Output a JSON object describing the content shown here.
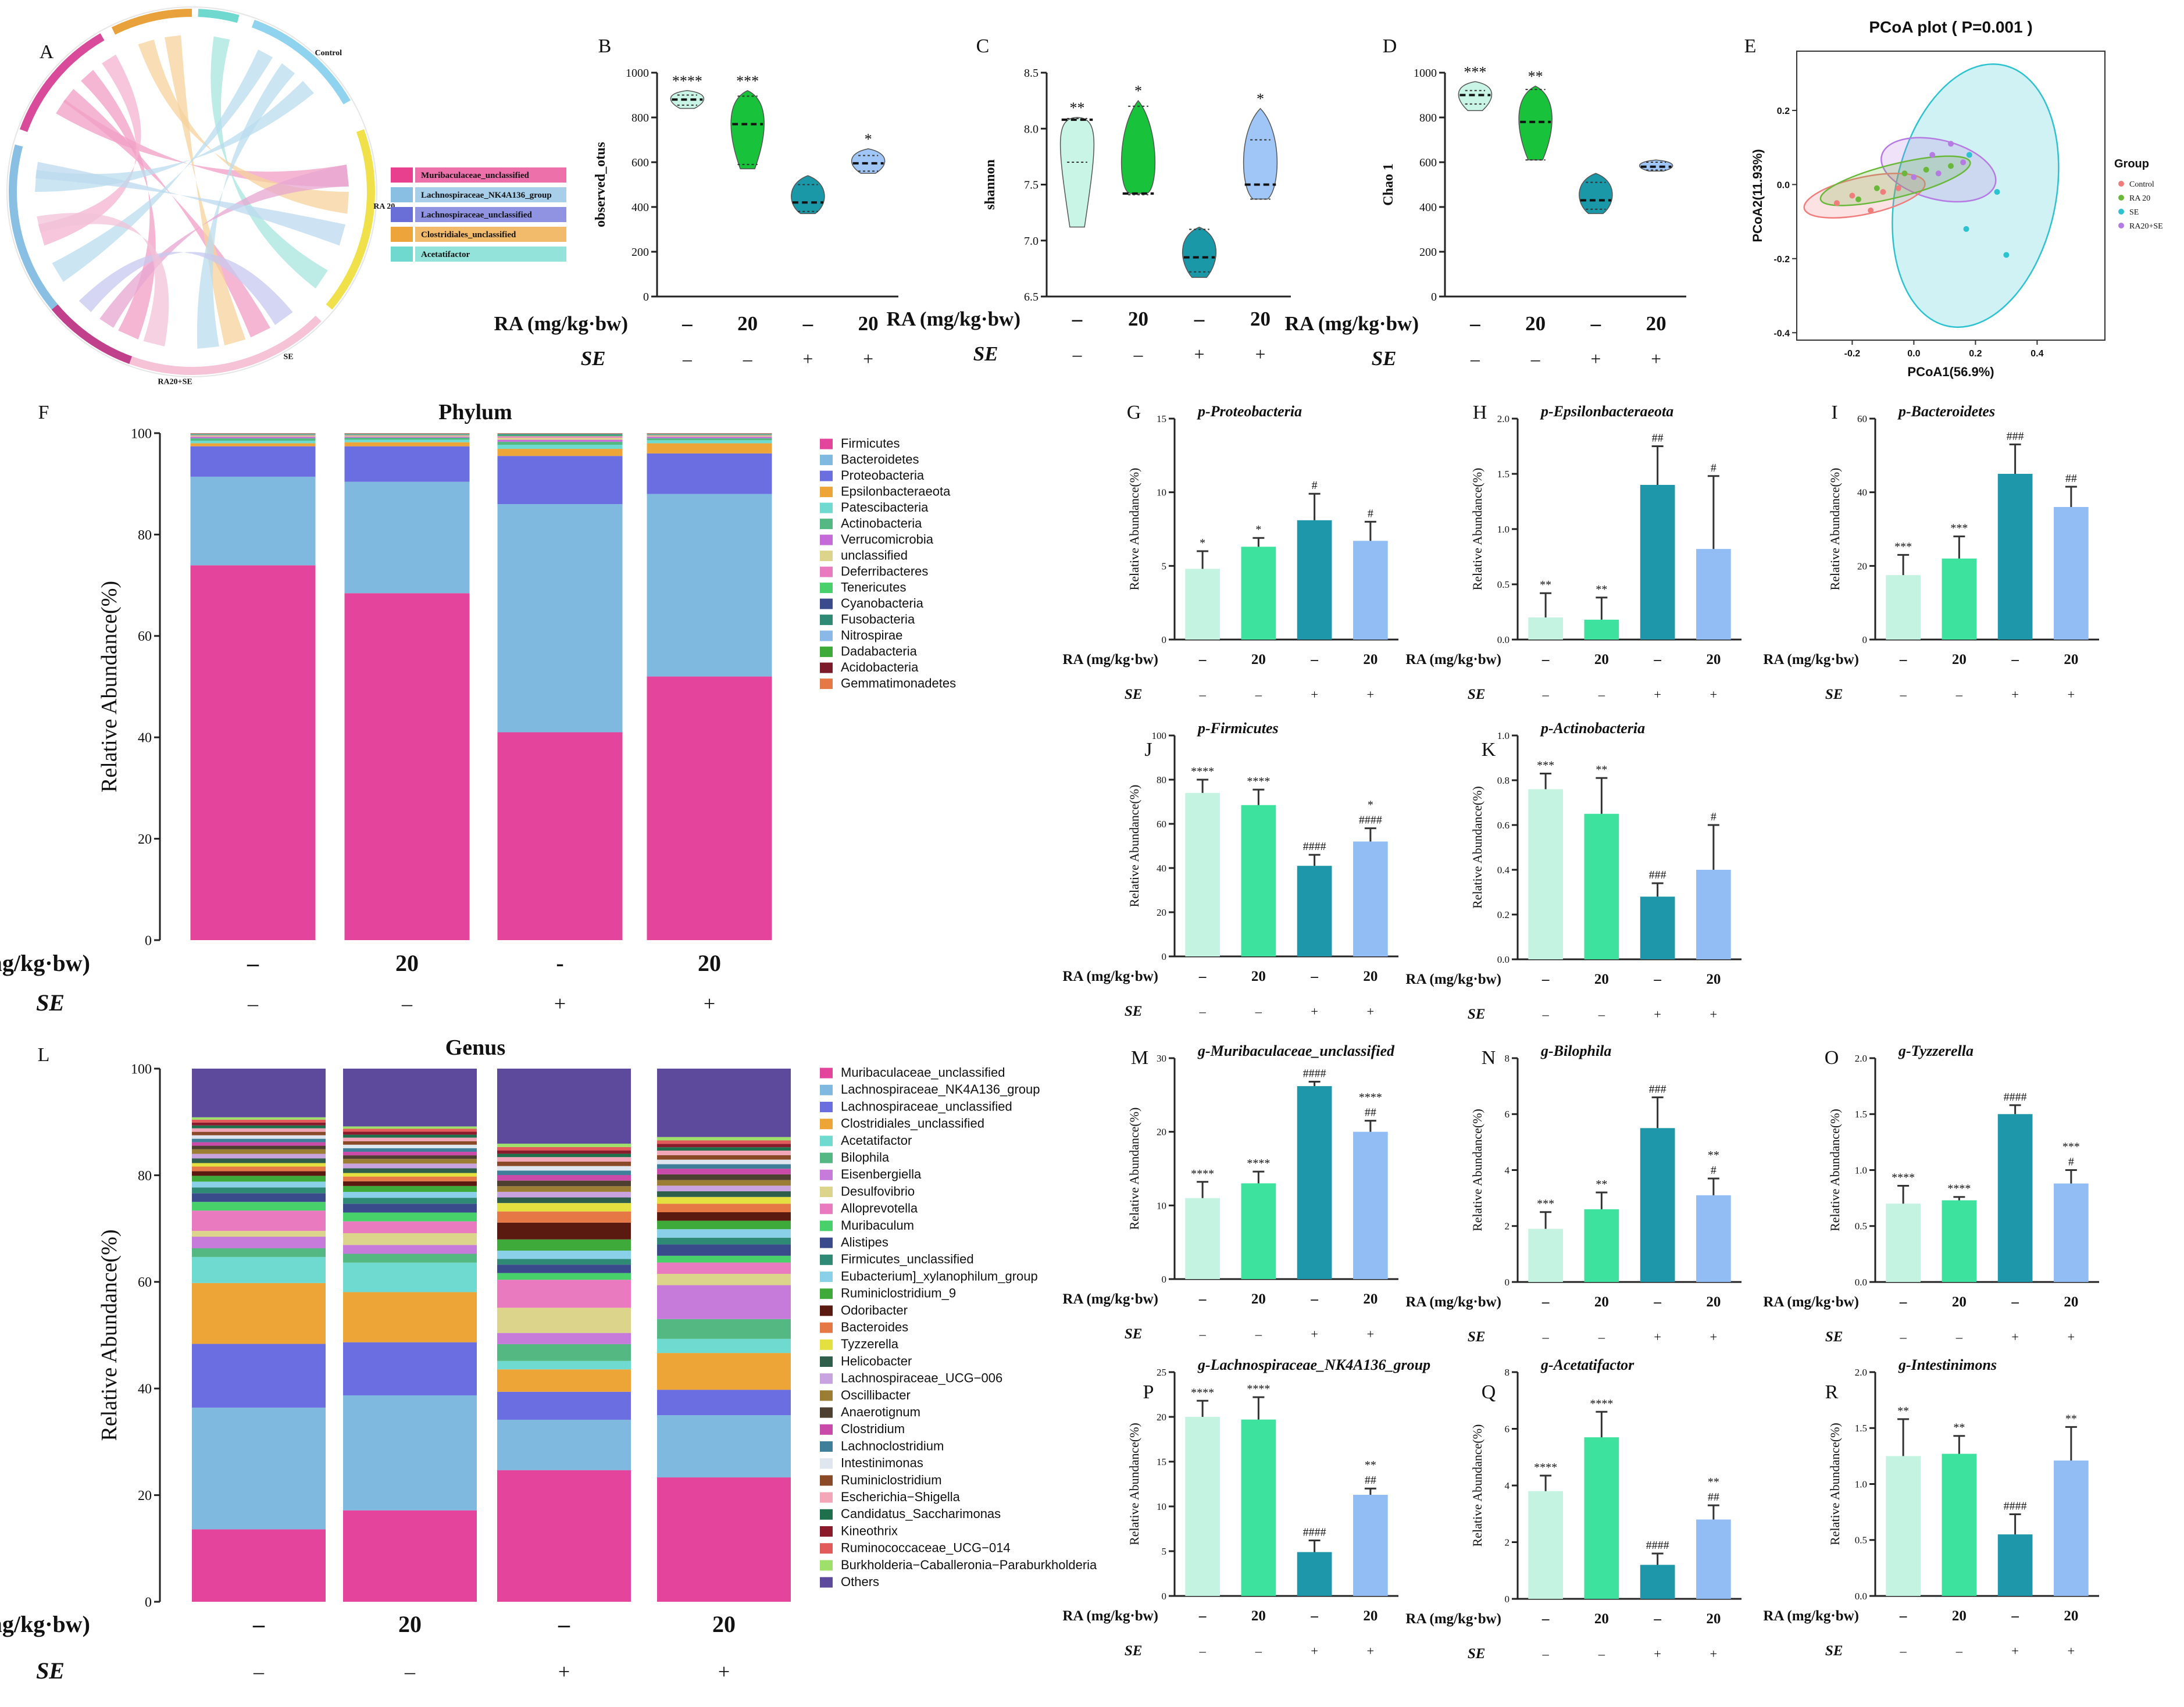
{
  "colors": {
    "c_control": "#c5f3e1",
    "c_ra": "#3ce29d",
    "c_se": "#1d97a9",
    "c_rase": "#92bdf4",
    "v_control": "#c8f5e6",
    "v_ra": "#18c23b",
    "v_se": "#1a98a8",
    "v_rase": "#9fc6f7",
    "axis": "#222222"
  },
  "group_axis": {
    "ra_label": "RA (mg/kg·bw)",
    "se_label": "SE",
    "ra_values": [
      "–",
      "20",
      "–",
      "20"
    ],
    "ra_values_phylum": [
      "–",
      "20",
      "-",
      "20"
    ],
    "se_values": [
      "–",
      "–",
      "+",
      "+"
    ]
  },
  "panel_letters": {
    "A": "A",
    "B": "B",
    "C": "C",
    "D": "D",
    "E": "E",
    "F": "F",
    "G": "G",
    "H": "H",
    "I": "I",
    "J": "J",
    "K": "K",
    "L": "L",
    "M": "M",
    "N": "N",
    "O": "O",
    "P": "P",
    "Q": "Q",
    "R": "R"
  },
  "chord_legend": [
    {
      "label": "Muribaculaceae_unclassified",
      "color": "#e8408f"
    },
    {
      "label": "Lachnospiraceae_NK4A136_group",
      "color": "#89bfe2"
    },
    {
      "label": "Lachnospiraceae_unclassified",
      "color": "#6a6fd8"
    },
    {
      "label": "Clostridiales_unclassified",
      "color": "#eda43a"
    },
    {
      "label": "Acetatifactor",
      "color": "#6fd9cf"
    }
  ],
  "chord_groups": [
    {
      "label": "Control",
      "color": "#8fd3ee"
    },
    {
      "label": "RA 20",
      "color": "#f0e14a"
    },
    {
      "label": "SE",
      "color": "#f5b0c8"
    },
    {
      "label": "RA20+SE",
      "color": "#f3c6da"
    }
  ],
  "chart_data": [
    {
      "id": "B",
      "type": "violin",
      "ylabel": "observed_otus",
      "ylim": [
        0,
        1000
      ],
      "ticks": [
        0,
        200,
        400,
        600,
        800,
        1000
      ],
      "groups": [
        {
          "lo": 830,
          "hi": 920,
          "median": 880,
          "q1": 855,
          "q3": 900
        },
        {
          "lo": 560,
          "hi": 920,
          "median": 770,
          "q1": 590,
          "q3": 895
        },
        {
          "lo": 360,
          "hi": 540,
          "median": 420,
          "q1": 380,
          "q3": 500
        },
        {
          "lo": 540,
          "hi": 660,
          "median": 595,
          "q1": 560,
          "q3": 630
        }
      ],
      "sig": [
        "****",
        "***",
        "",
        "*"
      ]
    },
    {
      "id": "C",
      "type": "violin",
      "ylabel": "shannon",
      "ylim": [
        6.5,
        8.5
      ],
      "ticks": [
        6.5,
        7.0,
        7.5,
        8.0,
        8.5
      ],
      "tick_labels": [
        "6.5",
        "7.0",
        "7.5",
        "8.0",
        "8.5"
      ],
      "groups": [
        {
          "lo": 7.1,
          "hi": 8.1,
          "median": 8.08,
          "q1": 7.7,
          "q3": 8.09
        },
        {
          "lo": 7.4,
          "hi": 8.25,
          "median": 7.42,
          "q1": 7.41,
          "q3": 8.2
        },
        {
          "lo": 6.65,
          "hi": 7.12,
          "median": 6.85,
          "q1": 6.72,
          "q3": 7.1
        },
        {
          "lo": 7.35,
          "hi": 8.18,
          "median": 7.5,
          "q1": 7.37,
          "q3": 7.9
        }
      ],
      "sig": [
        "**",
        "*",
        "",
        "*"
      ]
    },
    {
      "id": "D",
      "type": "violin",
      "ylabel": "Chao 1",
      "ylim": [
        0,
        1000
      ],
      "ticks": [
        0,
        200,
        400,
        600,
        800,
        1000
      ],
      "groups": [
        {
          "lo": 820,
          "hi": 960,
          "median": 900,
          "q1": 860,
          "q3": 920
        },
        {
          "lo": 600,
          "hi": 940,
          "median": 780,
          "q1": 610,
          "q3": 925
        },
        {
          "lo": 360,
          "hi": 550,
          "median": 430,
          "q1": 390,
          "q3": 510
        },
        {
          "lo": 550,
          "hi": 610,
          "median": 580,
          "q1": 565,
          "q3": 600
        }
      ],
      "sig": [
        "***",
        "**",
        "",
        ""
      ]
    },
    {
      "id": "E",
      "type": "scatter",
      "title": "PCoA plot ( P=0.001 )",
      "xlabel": "PCoA1(56.9%)",
      "ylabel": "PCoA2(11.93%)",
      "xlim": [
        -0.38,
        0.62
      ],
      "ylim": [
        -0.42,
        0.36
      ],
      "xticks": [
        -0.2,
        0.0,
        0.2,
        0.4
      ],
      "xtick_labels": [
        "-0.2",
        "0.0",
        "0.2",
        "0.4"
      ],
      "yticks": [
        -0.4,
        -0.2,
        0.0,
        0.2
      ],
      "ytick_labels": [
        "-0.4",
        "-0.2",
        "0.0",
        "0.2"
      ],
      "legend_title": "Group",
      "legend_position": "right",
      "series": [
        {
          "name": "Control",
          "color": "#f07c7c",
          "points": [
            [
              -0.25,
              -0.05
            ],
            [
              -0.2,
              -0.03
            ],
            [
              -0.14,
              -0.07
            ],
            [
              -0.1,
              -0.02
            ],
            [
              -0.05,
              -0.01
            ]
          ],
          "ellipse": {
            "cx": -0.16,
            "cy": -0.03,
            "rx": 0.2,
            "ry": 0.05,
            "rot": 12
          }
        },
        {
          "name": "RA 20",
          "color": "#6ab83a",
          "points": [
            [
              -0.18,
              -0.04
            ],
            [
              -0.12,
              -0.01
            ],
            [
              -0.03,
              0.03
            ],
            [
              0.04,
              0.04
            ],
            [
              0.12,
              0.05
            ]
          ],
          "ellipse": {
            "cx": -0.06,
            "cy": 0.01,
            "rx": 0.25,
            "ry": 0.045,
            "rot": 14
          }
        },
        {
          "name": "SE",
          "color": "#2cc2cf",
          "points": [
            [
              0.18,
              0.08
            ],
            [
              0.27,
              -0.02
            ],
            [
              0.17,
              -0.12
            ],
            [
              0.3,
              -0.19
            ]
          ],
          "ellipse": {
            "cx": 0.2,
            "cy": -0.03,
            "rx": 0.26,
            "ry": 0.36,
            "rot": -12
          }
        },
        {
          "name": "RA20+SE",
          "color": "#b57be3",
          "points": [
            [
              0.0,
              0.02
            ],
            [
              0.06,
              0.08
            ],
            [
              0.12,
              0.11
            ],
            [
              0.16,
              0.06
            ],
            [
              0.08,
              0.03
            ]
          ],
          "ellipse": {
            "cx": 0.08,
            "cy": 0.04,
            "rx": 0.19,
            "ry": 0.08,
            "rot": -14
          }
        }
      ]
    },
    {
      "id": "F",
      "type": "stacked_bar",
      "title": "Phylum",
      "ylabel": "Relative Abundance(%)",
      "ylim": [
        0,
        100
      ],
      "ticks": [
        0,
        20,
        40,
        60,
        80,
        100
      ],
      "legend": [
        "Firmicutes",
        "Bacteroidetes",
        "Proteobacteria",
        "Epsilonbacteraeota",
        "Patescibacteria",
        "Actinobacteria",
        "Verrucomicrobia",
        "unclassified",
        "Deferribacteres",
        "Tenericutes",
        "Cyanobacteria",
        "Fusobacteria",
        "Nitrospirae",
        "Dadabacteria",
        "Acidobacteria",
        "Gemmatimonadetes"
      ],
      "legend_colors": [
        "#e4449c",
        "#7fb9e0",
        "#6a6ee0",
        "#eca536",
        "#6fdad0",
        "#54b882",
        "#c56ad9",
        "#dcd48a",
        "#ea7ac0",
        "#48d16a",
        "#3a4b8c",
        "#2e8a74",
        "#8ab9e8",
        "#3eaa3a",
        "#7b1b2a",
        "#e57845"
      ],
      "stacks": [
        [
          74,
          17.5,
          6,
          0.6,
          0.5,
          0.5,
          0.3,
          0.2,
          0.1,
          0.1,
          0.05,
          0.05,
          0.05,
          0.05,
          0.05,
          0.05
        ],
        [
          68.5,
          22,
          7,
          0.8,
          0.5,
          0.4,
          0.2,
          0.2,
          0.1,
          0.1,
          0.05,
          0.05,
          0.05,
          0.05,
          0.05,
          0.05
        ],
        [
          41,
          45,
          9.5,
          1.4,
          0.8,
          0.6,
          0.4,
          0.4,
          0.3,
          0.2,
          0.1,
          0.1,
          0.05,
          0.05,
          0.05,
          0.05
        ],
        [
          52,
          36,
          8,
          2,
          0.6,
          0.4,
          0.3,
          0.2,
          0.1,
          0.1,
          0.05,
          0.05,
          0.05,
          0.05,
          0.05,
          0.05
        ]
      ]
    },
    {
      "id": "L",
      "type": "stacked_bar",
      "title": "Genus",
      "ylabel": "Relative Abundance(%)",
      "ylim": [
        0,
        100
      ],
      "ticks": [
        0,
        20,
        40,
        60,
        80,
        100
      ],
      "legend": [
        "Muribaculaceae_unclassified",
        "Lachnospiraceae_NK4A136_group",
        "Lachnospiraceae_unclassified",
        "Clostridiales_unclassified",
        "Acetatifactor",
        "Bilophila",
        "Eisenbergiella",
        "Desulfovibrio",
        "Alloprevotella",
        "Muribaculum",
        "Alistipes",
        "Firmicutes_unclassified",
        "Eubacterium]_xylanophilum_group",
        "Ruminiclostridium_9",
        "Odoribacter",
        "Bacteroides",
        "Tyzzerella",
        "Helicobacter",
        "Lachnospiraceae_UCG−006",
        "Oscillibacter",
        "Anaerotignum",
        "Clostridium",
        "Lachnoclostridium",
        "Intestinimonas",
        "Ruminiclostridium",
        "Escherichia−Shigella",
        "Candidatus_Saccharimonas",
        "Kineothrix",
        "Ruminococcaceae_UCG−014",
        "Burkholderia−Caballeronia−Paraburkholderia",
        "Others"
      ],
      "legend_colors": [
        "#e4449c",
        "#7fb9e0",
        "#6a6ee0",
        "#eca536",
        "#6fdad0",
        "#54b882",
        "#c67ad9",
        "#dcd48a",
        "#ea7ac0",
        "#48d16a",
        "#3a4b8c",
        "#2e8a74",
        "#8ad0e8",
        "#3eaa3a",
        "#5b1a10",
        "#e57845",
        "#e3e040",
        "#2f5f4a",
        "#c9a2e0",
        "#9b7d34",
        "#4d4030",
        "#c94aa8",
        "#3f7f9a",
        "#dfe6ef",
        "#8a4a28",
        "#f2a6b7",
        "#1e6f4c",
        "#8a1b2a",
        "#e35a5a",
        "#9ee06a",
        "#5d4a9c"
      ],
      "stacks": [
        [
          12.5,
          21,
          11,
          10.5,
          4.5,
          1.5,
          2,
          1,
          3.5,
          1.5,
          1.5,
          1,
          1,
          1,
          0.8,
          0.8,
          0.6,
          0.8,
          0.8,
          0.8,
          0.6,
          0.6,
          0.6,
          0.6,
          0.6,
          0.6,
          0.5,
          0.5,
          0.5,
          0.4,
          8.4
        ],
        [
          15.5,
          19.5,
          9,
          8.5,
          5,
          1.5,
          1.5,
          2,
          2,
          1.5,
          1.5,
          1,
          1,
          1,
          0.8,
          0.8,
          0.6,
          0.8,
          0.8,
          0.8,
          0.6,
          0.6,
          0.6,
          0.6,
          0.6,
          0.6,
          0.5,
          0.5,
          0.5,
          0.4,
          9.8
        ],
        [
          23.5,
          9,
          5,
          4,
          1.5,
          3,
          2,
          4.5,
          5,
          1.2,
          1.5,
          1,
          1.5,
          2,
          3,
          2,
          1.5,
          1,
          1,
          1,
          1,
          1,
          0.8,
          0.8,
          0.8,
          0.8,
          0.6,
          0.6,
          0.6,
          0.6,
          13.4
        ],
        [
          22,
          11,
          4.5,
          6.5,
          2.5,
          3.5,
          6,
          2,
          2,
          1.2,
          2,
          1.2,
          1.5,
          1.5,
          1.5,
          1.5,
          1.2,
          1,
          1,
          1,
          1,
          1,
          0.8,
          0.8,
          0.8,
          0.8,
          0.6,
          0.6,
          0.6,
          0.6,
          12.1
        ]
      ]
    },
    {
      "id": "G",
      "type": "bar",
      "title": "p-Proteobacteria",
      "ylabel": "Relative Abundance(%)",
      "ylim": [
        0,
        15
      ],
      "ticks": [
        0,
        5,
        10,
        15
      ],
      "values": [
        4.8,
        6.3,
        8.1,
        6.7
      ],
      "errors": [
        1.2,
        0.6,
        1.8,
        1.3
      ],
      "sig_top": [
        "*",
        "*",
        "#",
        "#"
      ],
      "sig_second": [
        "",
        "",
        "",
        ""
      ]
    },
    {
      "id": "H",
      "type": "bar",
      "title": "p-Epsilonbacteraeota",
      "ylabel": "Relative Abundance(%)",
      "ylim": [
        0,
        2.0
      ],
      "ticks": [
        0,
        0.5,
        1.0,
        1.5,
        2.0
      ],
      "tick_labels": [
        "0.0",
        "0.5",
        "1.0",
        "1.5",
        "2.0"
      ],
      "values": [
        0.2,
        0.18,
        1.4,
        0.82
      ],
      "errors": [
        0.22,
        0.2,
        0.35,
        0.66
      ],
      "sig_top": [
        "**",
        "**",
        "##",
        "#"
      ],
      "sig_second": [
        "",
        "",
        "",
        ""
      ]
    },
    {
      "id": "I",
      "type": "bar",
      "title": "p-Bacteroidetes",
      "ylabel": "Relative Abundance(%)",
      "ylim": [
        0,
        60
      ],
      "ticks": [
        0,
        20,
        40,
        60
      ],
      "values": [
        17.5,
        22,
        45,
        36
      ],
      "errors": [
        5.5,
        6,
        8,
        5.5
      ],
      "sig_top": [
        "***",
        "***",
        "###",
        "##"
      ],
      "sig_second": [
        "",
        "",
        "",
        ""
      ]
    },
    {
      "id": "J",
      "type": "bar",
      "title": "p-Firmicutes",
      "ylabel": "Relative Abundance(%)",
      "ylim": [
        0,
        100
      ],
      "ticks": [
        0,
        20,
        40,
        60,
        80,
        100
      ],
      "values": [
        74,
        68.5,
        41,
        52
      ],
      "errors": [
        6,
        7,
        5,
        6
      ],
      "sig_top": [
        "****",
        "****",
        "####",
        "*"
      ],
      "sig_second": [
        "",
        "",
        "",
        "####"
      ]
    },
    {
      "id": "K",
      "type": "bar",
      "title": "p-Actinobacteria",
      "ylabel": "Relative Abundance(%)",
      "ylim": [
        0,
        1.0
      ],
      "ticks": [
        0,
        0.2,
        0.4,
        0.6,
        0.8,
        1.0
      ],
      "tick_labels": [
        "0.0",
        "0.2",
        "0.4",
        "0.6",
        "0.8",
        "1.0"
      ],
      "values": [
        0.76,
        0.65,
        0.28,
        0.4
      ],
      "errors": [
        0.07,
        0.16,
        0.06,
        0.2
      ],
      "sig_top": [
        "***",
        "**",
        "###",
        "#"
      ],
      "sig_second": [
        "",
        "",
        "",
        ""
      ]
    },
    {
      "id": "M",
      "type": "bar",
      "title": "g-Muribaculaceae_unclassified",
      "ylabel": "Relative Abundance(%)",
      "ylim": [
        0,
        30
      ],
      "ticks": [
        0,
        10,
        20,
        30
      ],
      "values": [
        11,
        13,
        26.2,
        20
      ],
      "errors": [
        2.2,
        1.6,
        0.6,
        1.5
      ],
      "sig_top": [
        "****",
        "****",
        "####",
        "****"
      ],
      "sig_second": [
        "",
        "",
        "",
        "##"
      ]
    },
    {
      "id": "N",
      "type": "bar",
      "title": "g-Bilophila",
      "ylabel": "Relative Abundance(%)",
      "ylim": [
        0,
        8
      ],
      "ticks": [
        0,
        2,
        4,
        6,
        8
      ],
      "values": [
        1.9,
        2.6,
        5.5,
        3.1
      ],
      "errors": [
        0.6,
        0.6,
        1.1,
        0.6
      ],
      "sig_top": [
        "***",
        "**",
        "###",
        "**"
      ],
      "sig_second": [
        "",
        "",
        "",
        "#"
      ]
    },
    {
      "id": "O",
      "type": "bar",
      "title": "g-Tyzzerella",
      "ylabel": "Relative Abundance(%)",
      "ylim": [
        0,
        2.0
      ],
      "ticks": [
        0,
        0.5,
        1.0,
        1.5,
        2.0
      ],
      "tick_labels": [
        "0.0",
        "0.5",
        "1.0",
        "1.5",
        "2.0"
      ],
      "values": [
        0.7,
        0.73,
        1.5,
        0.88
      ],
      "errors": [
        0.16,
        0.03,
        0.08,
        0.12
      ],
      "sig_top": [
        "****",
        "****",
        "####",
        "***"
      ],
      "sig_second": [
        "",
        "",
        "",
        "#"
      ]
    },
    {
      "id": "P",
      "type": "bar",
      "title": "g-Lachnospiraceae_NK4A136_group",
      "ylabel": "Relative Abundance(%)",
      "ylim": [
        0,
        25
      ],
      "ticks": [
        0,
        5,
        10,
        15,
        20,
        25
      ],
      "values": [
        20,
        19.7,
        4.9,
        11.3
      ],
      "errors": [
        1.8,
        2.5,
        1.3,
        0.7
      ],
      "sig_top": [
        "****",
        "****",
        "####",
        "**"
      ],
      "sig_second": [
        "",
        "",
        "",
        "##"
      ]
    },
    {
      "id": "Q",
      "type": "bar",
      "title": "g-Acetatifactor",
      "ylabel": "Relative Abundance(%)",
      "ylim": [
        0,
        8
      ],
      "ticks": [
        0,
        2,
        4,
        6,
        8
      ],
      "values": [
        3.8,
        5.7,
        1.2,
        2.8
      ],
      "errors": [
        0.55,
        0.9,
        0.4,
        0.5
      ],
      "sig_top": [
        "****",
        "****",
        "####",
        "**"
      ],
      "sig_second": [
        "",
        "",
        "",
        "##"
      ]
    },
    {
      "id": "R",
      "type": "bar",
      "title": "g-Intestinimons",
      "ylabel": "Relative Abundance(%)",
      "ylim": [
        0,
        2.0
      ],
      "ticks": [
        0,
        0.5,
        1.0,
        1.5,
        2.0
      ],
      "tick_labels": [
        "0.0",
        "0.5",
        "1.0",
        "1.5",
        "2.0"
      ],
      "values": [
        1.25,
        1.27,
        0.55,
        1.21
      ],
      "errors": [
        0.33,
        0.16,
        0.18,
        0.3
      ],
      "sig_top": [
        "**",
        "**",
        "####",
        "**"
      ],
      "sig_second": [
        "",
        "",
        "",
        ""
      ]
    }
  ]
}
